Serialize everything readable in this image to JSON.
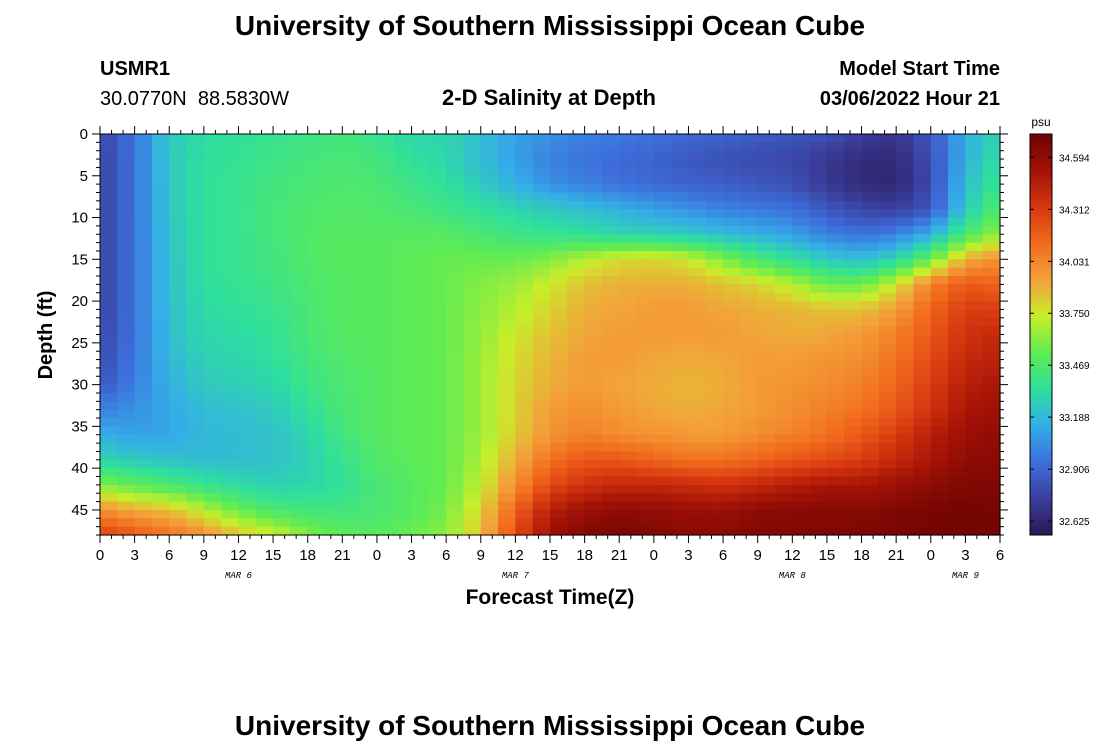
{
  "header": {
    "title": "University of Southern Mississippi Ocean Cube",
    "station_id": "USMR1",
    "coords": "30.0770N  88.5830W",
    "subtitle": "2-D Salinity at Depth",
    "model_start_label": "Model Start Time",
    "model_start_value": "03/06/2022 Hour 21"
  },
  "footer": {
    "title": "University of Southern Mississippi Ocean Cube"
  },
  "chart_data": {
    "type": "heatmap",
    "title": "2-D Salinity at Depth",
    "xlabel": "Forecast Time(Z)",
    "ylabel": "Depth (ft)",
    "x_hours_range": [
      0,
      78
    ],
    "x_ticks": [
      "0",
      "3",
      "6",
      "9",
      "12",
      "15",
      "18",
      "21",
      "0",
      "3",
      "6",
      "9",
      "12",
      "15",
      "18",
      "21",
      "0",
      "3",
      "6",
      "9",
      "12",
      "15",
      "18",
      "21",
      "0",
      "3",
      "6"
    ],
    "date_labels": [
      {
        "hour": 12,
        "label": "MAR 6"
      },
      {
        "hour": 36,
        "label": "MAR 7"
      },
      {
        "hour": 60,
        "label": "MAR 8"
      },
      {
        "hour": 75,
        "label": "MAR 9"
      }
    ],
    "y_range_ft": [
      0,
      48
    ],
    "y_ticks": [
      "0",
      "5",
      "10",
      "15",
      "20",
      "25",
      "30",
      "35",
      "40",
      "45"
    ],
    "colorbar": {
      "unit": "psu",
      "min": 32.55,
      "max": 34.72,
      "tick_labels": [
        "34.594",
        "34.312",
        "34.031",
        "33.750",
        "33.469",
        "33.188",
        "32.906",
        "32.625"
      ],
      "colors": [
        "#2a1755",
        "#3a3e9c",
        "#3d6fdc",
        "#34aee8",
        "#2edf9e",
        "#60ec52",
        "#c8ee2a",
        "#f3a13a",
        "#f26a1c",
        "#d6360f",
        "#a31206",
        "#6d0303"
      ]
    },
    "grid_note": "Salinity (psu) sampled every 1.5 h (x) and every 1.5 ft (y); values read from color",
    "grid_x_hours": [
      0,
      3,
      6,
      9,
      12,
      15,
      18,
      21,
      24,
      27,
      30,
      33,
      36,
      39,
      42,
      45,
      48,
      51,
      54,
      57,
      60,
      63,
      66,
      69,
      72,
      75,
      78
    ],
    "grid_y_ft": [
      0,
      3,
      6,
      9,
      12,
      15,
      18,
      21,
      24,
      27,
      30,
      33,
      36,
      39,
      42,
      45,
      48
    ],
    "values": [
      [
        32.78,
        32.96,
        33.25,
        33.33,
        33.35,
        33.38,
        33.4,
        33.43,
        33.38,
        33.3,
        33.3,
        33.2,
        33.1,
        33.05,
        33.0,
        32.98,
        32.95,
        32.92,
        32.9,
        32.88,
        32.85,
        32.82,
        32.75,
        32.7,
        32.85,
        33.15,
        33.3
      ],
      [
        32.77,
        32.95,
        33.25,
        33.34,
        33.37,
        33.4,
        33.43,
        33.45,
        33.42,
        33.35,
        33.3,
        33.2,
        33.1,
        33.0,
        32.95,
        32.92,
        32.9,
        32.85,
        32.82,
        32.8,
        32.78,
        32.72,
        32.66,
        32.64,
        32.82,
        33.15,
        33.35
      ],
      [
        32.77,
        32.95,
        33.24,
        33.35,
        33.38,
        33.42,
        33.45,
        33.47,
        33.45,
        33.4,
        33.35,
        33.25,
        33.15,
        33.05,
        33.0,
        32.95,
        32.92,
        32.9,
        32.88,
        32.85,
        32.82,
        32.72,
        32.65,
        32.63,
        32.8,
        33.2,
        33.4
      ],
      [
        32.77,
        32.95,
        33.24,
        33.35,
        33.38,
        33.43,
        33.47,
        33.48,
        33.48,
        33.45,
        33.4,
        33.35,
        33.3,
        33.25,
        33.2,
        33.15,
        33.1,
        33.05,
        33.0,
        32.98,
        32.95,
        32.85,
        32.78,
        32.75,
        32.85,
        33.25,
        33.5
      ],
      [
        32.77,
        32.95,
        33.23,
        33.35,
        33.38,
        33.43,
        33.48,
        33.5,
        33.5,
        33.5,
        33.5,
        33.45,
        33.4,
        33.38,
        33.35,
        33.3,
        33.28,
        33.25,
        33.2,
        33.15,
        33.1,
        33.0,
        32.95,
        33.0,
        33.15,
        33.45,
        33.65
      ],
      [
        32.77,
        32.95,
        33.22,
        33.35,
        33.38,
        33.42,
        33.48,
        33.5,
        33.5,
        33.52,
        33.55,
        33.55,
        33.55,
        33.6,
        33.7,
        33.78,
        33.8,
        33.75,
        33.6,
        33.45,
        33.35,
        33.25,
        33.2,
        33.3,
        33.55,
        33.9,
        34.0
      ],
      [
        32.77,
        32.95,
        33.22,
        33.34,
        33.37,
        33.4,
        33.46,
        33.5,
        33.5,
        33.52,
        33.55,
        33.6,
        33.65,
        33.75,
        33.85,
        33.9,
        33.9,
        33.9,
        33.85,
        33.8,
        33.7,
        33.55,
        33.55,
        33.75,
        34.05,
        34.2,
        34.15
      ],
      [
        32.77,
        32.95,
        33.21,
        33.32,
        33.35,
        33.38,
        33.45,
        33.5,
        33.5,
        33.52,
        33.55,
        33.62,
        33.7,
        33.8,
        33.9,
        33.92,
        33.95,
        33.95,
        33.92,
        33.9,
        33.88,
        33.85,
        33.85,
        33.95,
        34.15,
        34.3,
        34.3
      ],
      [
        32.78,
        32.96,
        33.2,
        33.3,
        33.32,
        33.36,
        33.44,
        33.5,
        33.5,
        33.52,
        33.55,
        33.63,
        33.75,
        33.85,
        33.92,
        33.95,
        33.95,
        33.95,
        33.95,
        33.92,
        33.9,
        33.92,
        33.95,
        34.05,
        34.2,
        34.35,
        34.4
      ],
      [
        32.8,
        32.98,
        33.18,
        33.28,
        33.3,
        33.34,
        33.42,
        33.48,
        33.5,
        33.52,
        33.55,
        33.65,
        33.78,
        33.88,
        33.95,
        33.95,
        33.92,
        33.9,
        33.92,
        33.95,
        33.95,
        33.98,
        34.0,
        34.1,
        34.25,
        34.4,
        34.45
      ],
      [
        32.85,
        33.0,
        33.15,
        33.25,
        33.27,
        33.3,
        33.4,
        33.46,
        33.5,
        33.52,
        33.55,
        33.65,
        33.8,
        33.9,
        33.95,
        33.92,
        33.9,
        33.88,
        33.9,
        33.95,
        33.98,
        34.0,
        34.05,
        34.15,
        34.3,
        34.45,
        34.5
      ],
      [
        33.0,
        33.05,
        33.12,
        33.2,
        33.22,
        33.25,
        33.35,
        33.45,
        33.5,
        33.52,
        33.55,
        33.65,
        33.8,
        33.95,
        34.0,
        33.95,
        33.92,
        33.9,
        33.92,
        33.95,
        34.0,
        34.05,
        34.1,
        34.2,
        34.35,
        34.5,
        34.55
      ],
      [
        33.15,
        33.1,
        33.12,
        33.18,
        33.2,
        33.22,
        33.3,
        33.42,
        33.5,
        33.52,
        33.55,
        33.65,
        33.82,
        33.98,
        34.05,
        34.0,
        33.98,
        33.95,
        33.95,
        34.0,
        34.05,
        34.1,
        34.2,
        34.3,
        34.45,
        34.55,
        34.6
      ],
      [
        33.3,
        33.25,
        33.22,
        33.2,
        33.2,
        33.22,
        33.28,
        33.38,
        33.48,
        33.52,
        33.55,
        33.68,
        33.9,
        34.1,
        34.2,
        34.2,
        34.15,
        34.1,
        34.1,
        34.15,
        34.2,
        34.25,
        34.3,
        34.4,
        34.5,
        34.6,
        34.62
      ],
      [
        33.6,
        33.52,
        33.45,
        33.38,
        33.32,
        33.28,
        33.3,
        33.35,
        33.45,
        33.5,
        33.55,
        33.72,
        34.0,
        34.25,
        34.35,
        34.4,
        34.4,
        34.38,
        34.35,
        34.4,
        34.45,
        34.5,
        34.5,
        34.55,
        34.6,
        34.65,
        34.65
      ],
      [
        34.0,
        33.9,
        33.85,
        33.7,
        33.55,
        33.45,
        33.42,
        33.42,
        33.45,
        33.5,
        33.58,
        33.8,
        34.15,
        34.45,
        34.55,
        34.6,
        34.58,
        34.55,
        34.55,
        34.6,
        34.62,
        34.62,
        34.62,
        34.65,
        34.68,
        34.7,
        34.68
      ],
      [
        34.3,
        34.2,
        34.1,
        34.0,
        33.85,
        33.75,
        33.6,
        33.52,
        33.5,
        33.55,
        33.62,
        33.85,
        34.25,
        34.55,
        34.65,
        34.68,
        34.65,
        34.62,
        34.62,
        34.65,
        34.65,
        34.66,
        34.66,
        34.68,
        34.7,
        34.7,
        34.7
      ]
    ]
  }
}
